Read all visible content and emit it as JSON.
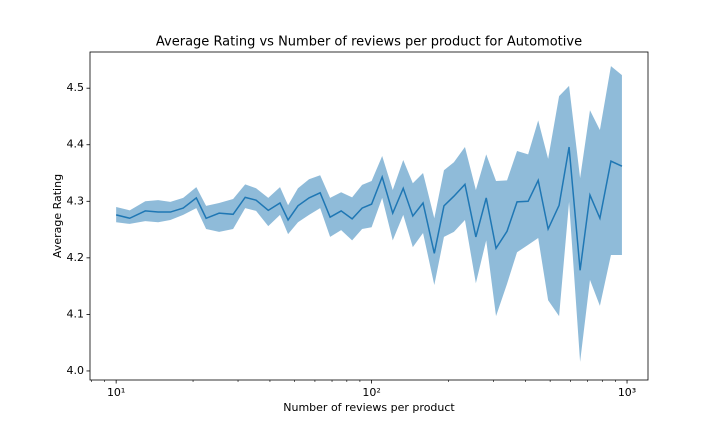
{
  "chart_data": {
    "type": "line_band",
    "title": "Average Rating vs Number of reviews per product for Automotive",
    "xlabel": "Number of reviews per product",
    "ylabel": "Average Rating",
    "color": "#1f77b4",
    "band_opacity": 0.5,
    "xscale": "log",
    "xlim": [
      7.9,
      1208
    ],
    "ylim": [
      3.984,
      4.564
    ],
    "xticks": [
      {
        "value": 10,
        "label": "10¹"
      },
      {
        "value": 100,
        "label": "10²"
      },
      {
        "value": 1000,
        "label": "10³"
      }
    ],
    "xminorticks": [
      8,
      9,
      20,
      30,
      40,
      50,
      60,
      70,
      80,
      90,
      200,
      300,
      400,
      500,
      600,
      700,
      800,
      900
    ],
    "yticks": [
      {
        "value": 4,
        "label": "4.0"
      },
      4.1,
      4.2,
      4.3,
      4.4,
      4.5
    ],
    "x": [
      10,
      11.3,
      13.0,
      14.6,
      16.3,
      18.3,
      20.6,
      22.5,
      25.3,
      28.7,
      32.0,
      35.3,
      39.4,
      43.8,
      47.1,
      51.5,
      56.9,
      62.9,
      68.8,
      76.0,
      83.9,
      91.8,
      100,
      110,
      121,
      133,
      145,
      159,
      176,
      192,
      210,
      232,
      256,
      281,
      307,
      339,
      371,
      410,
      449,
      491,
      542,
      593,
      655,
      716,
      783,
      865,
      955
    ],
    "values": [
      4.276,
      4.27,
      4.283,
      4.281,
      4.281,
      4.288,
      4.306,
      4.27,
      4.279,
      4.277,
      4.307,
      4.302,
      4.284,
      4.297,
      4.267,
      4.292,
      4.306,
      4.315,
      4.272,
      4.283,
      4.269,
      4.288,
      4.295,
      4.343,
      4.279,
      4.323,
      4.274,
      4.297,
      4.208,
      4.292,
      4.309,
      4.33,
      4.237,
      4.306,
      4.217,
      4.247,
      4.299,
      4.3,
      4.337,
      4.251,
      4.293,
      4.396,
      4.178,
      4.311,
      4.27,
      4.371,
      4.362
    ],
    "upper": [
      4.29,
      4.284,
      4.3,
      4.302,
      4.299,
      4.306,
      4.325,
      4.292,
      4.297,
      4.304,
      4.33,
      4.323,
      4.306,
      4.325,
      4.293,
      4.323,
      4.339,
      4.346,
      4.306,
      4.316,
      4.307,
      4.329,
      4.336,
      4.38,
      4.32,
      4.373,
      4.332,
      4.35,
      4.27,
      4.355,
      4.369,
      4.396,
      4.32,
      4.383,
      4.336,
      4.337,
      4.389,
      4.383,
      4.443,
      4.375,
      4.486,
      4.504,
      4.341,
      4.461,
      4.426,
      4.539,
      4.523
    ],
    "lower": [
      4.263,
      4.26,
      4.265,
      4.263,
      4.267,
      4.276,
      4.288,
      4.251,
      4.246,
      4.251,
      4.288,
      4.283,
      4.256,
      4.276,
      4.242,
      4.263,
      4.276,
      4.288,
      4.237,
      4.249,
      4.231,
      4.251,
      4.254,
      4.306,
      4.231,
      4.276,
      4.219,
      4.244,
      4.152,
      4.237,
      4.246,
      4.267,
      4.155,
      4.231,
      4.097,
      4.154,
      4.21,
      4.223,
      4.235,
      4.125,
      4.097,
      4.299,
      4.016,
      4.161,
      4.115,
      4.205,
      4.205
    ]
  }
}
